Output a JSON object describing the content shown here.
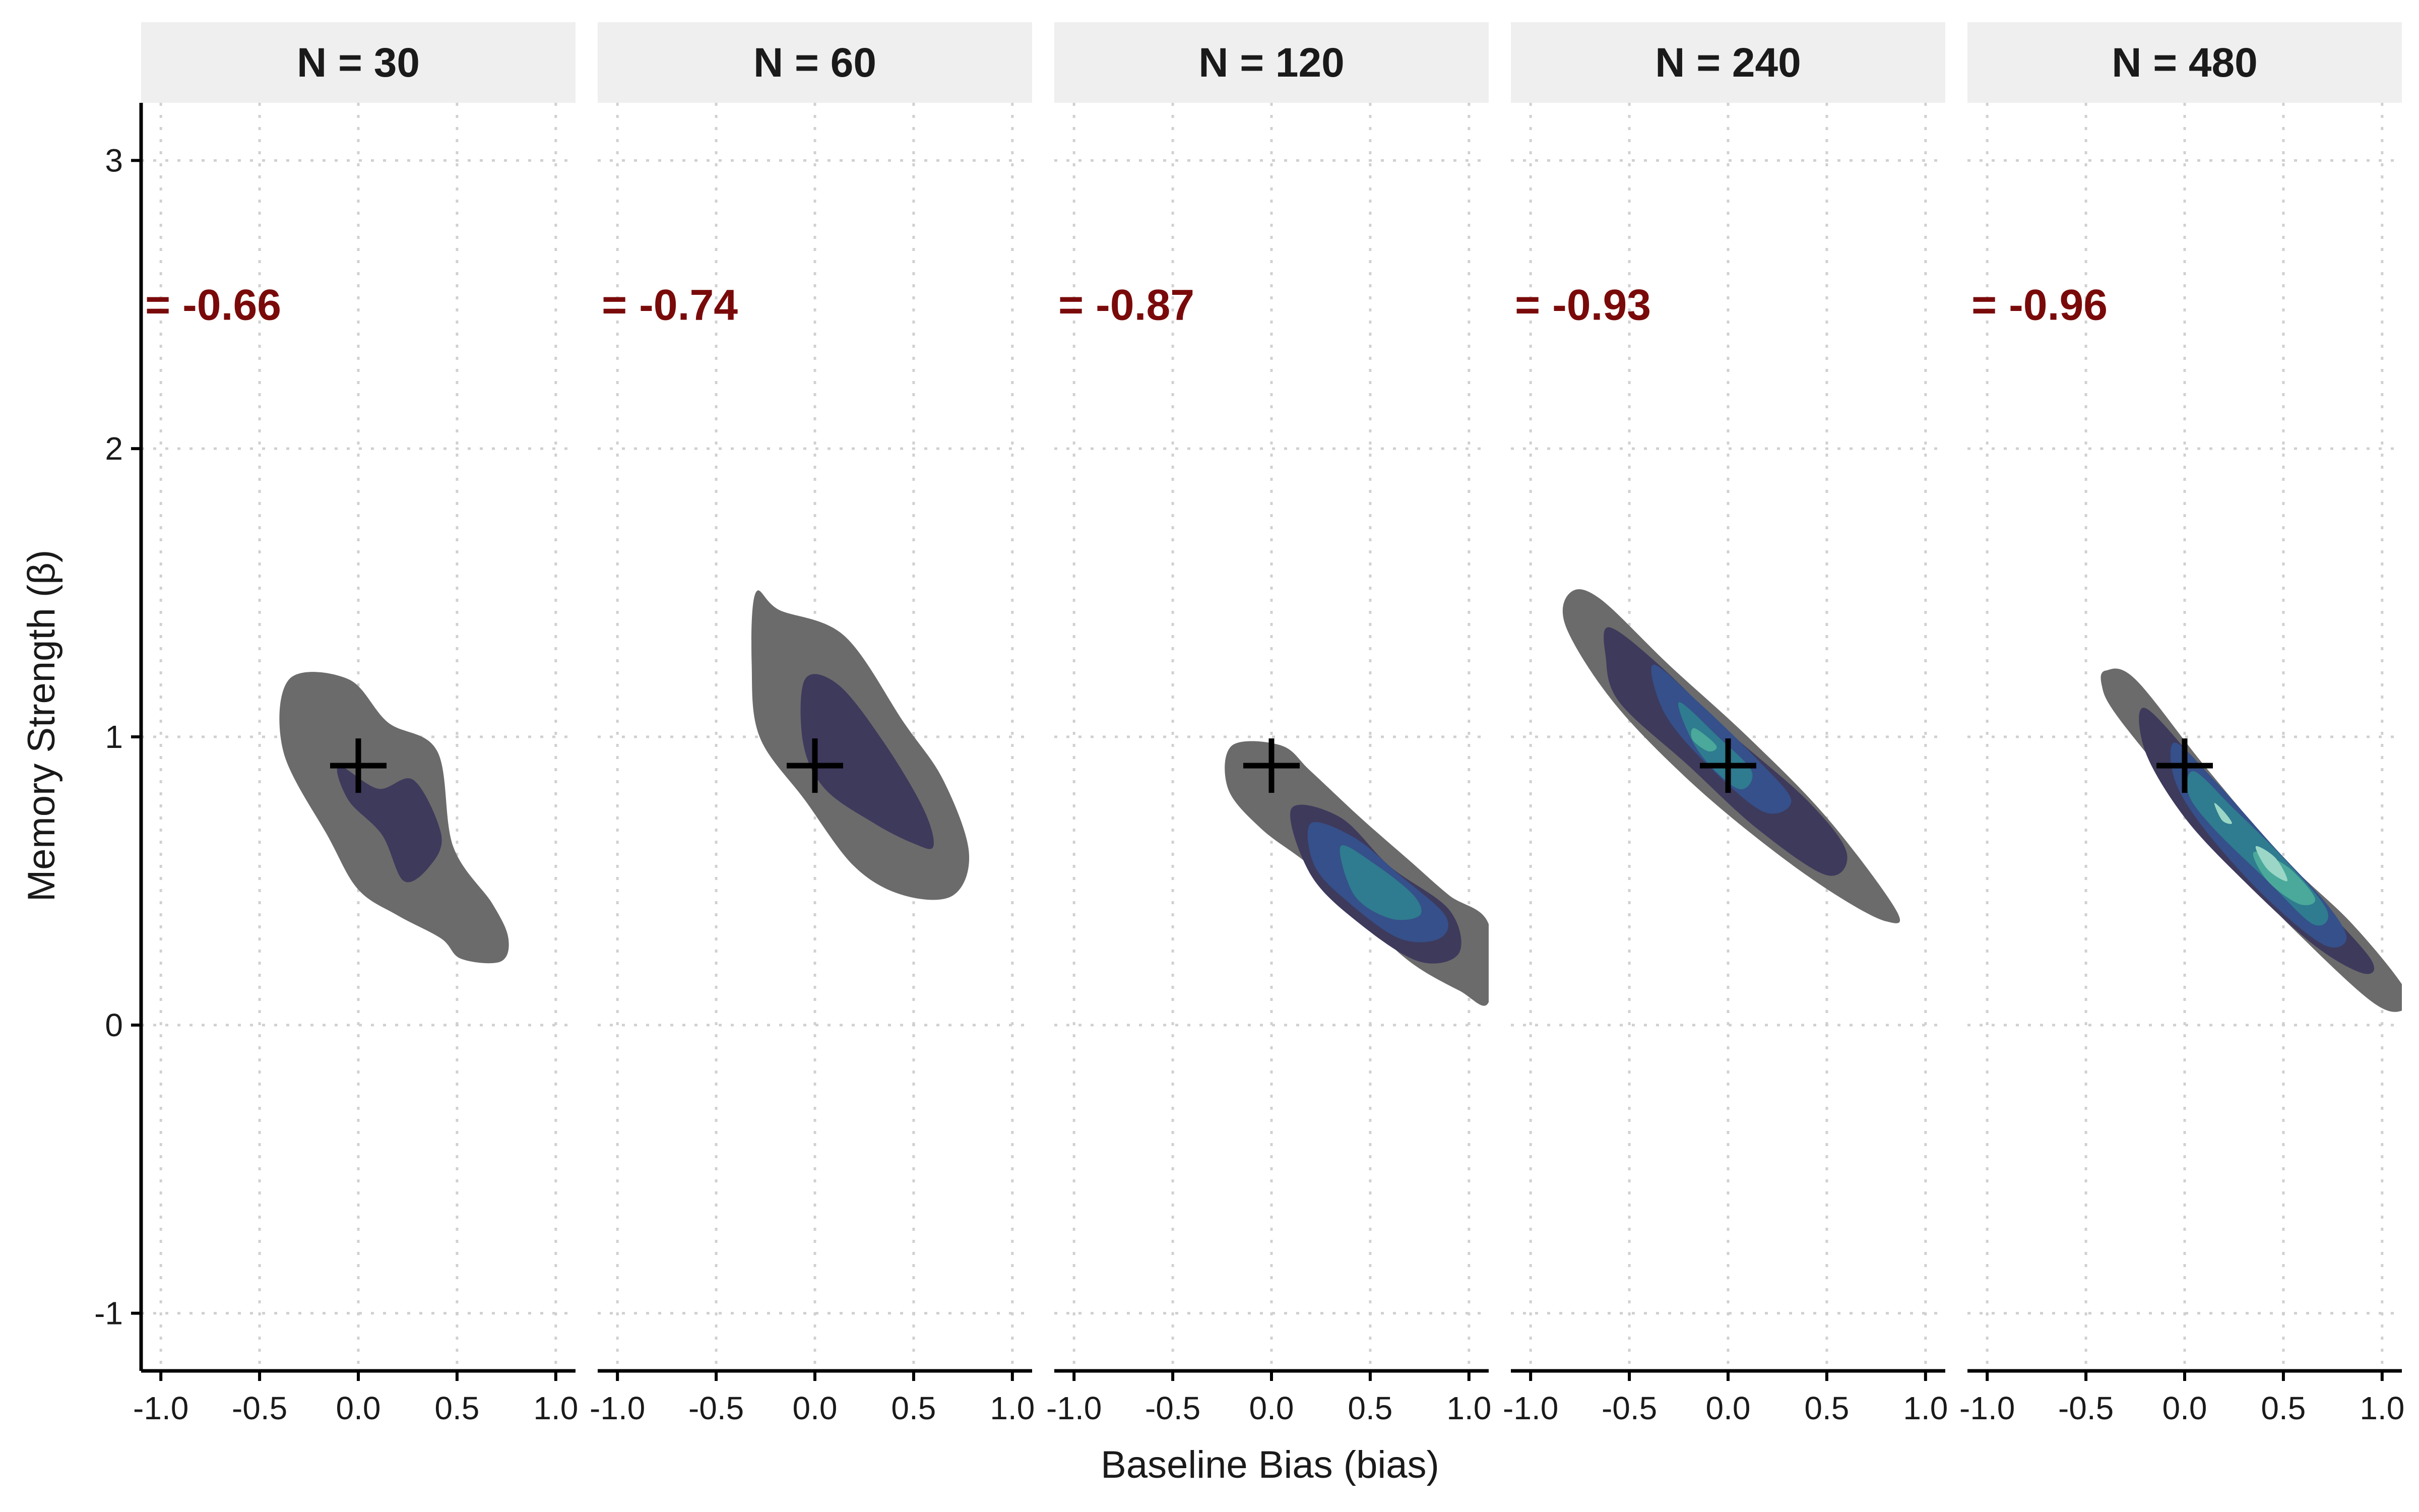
{
  "chart_data": {
    "type": "density_contour",
    "xlabel": "Baseline Bias (bias)",
    "ylabel": "Memory Strength (β)",
    "xlim": [
      -1.1,
      1.1
    ],
    "ylim": [
      -1.2,
      3.2
    ],
    "x_ticks": [
      "-1.0",
      "-0.5",
      "0.0",
      "0.5",
      "1.0"
    ],
    "y_ticks": [
      "-1",
      "0",
      "1",
      "2",
      "3"
    ],
    "x_tick_values": [
      -1.0,
      -0.5,
      0.0,
      0.5,
      1.0
    ],
    "y_tick_values": [
      -1,
      0,
      1,
      2,
      3
    ],
    "grid": true,
    "true_value": {
      "bias": 0.0,
      "beta": 0.9
    },
    "level_colors": [
      "#6b6b6b",
      "#3e3a5c",
      "#35508a",
      "#2f7b8f",
      "#4aa99a",
      "#9bd6c6"
    ],
    "panels": [
      {
        "strip": "N = 30",
        "correlation": "= -0.66",
        "levels": [
          {
            "level": 1,
            "points": [
              [
                -0.35,
                1.2
              ],
              [
                -0.05,
                1.2
              ],
              [
                0.15,
                1.05
              ],
              [
                0.4,
                0.95
              ],
              [
                0.48,
                0.62
              ],
              [
                0.68,
                0.42
              ],
              [
                0.76,
                0.3
              ],
              [
                0.72,
                0.22
              ],
              [
                0.52,
                0.23
              ],
              [
                0.42,
                0.3
              ],
              [
                0.2,
                0.38
              ],
              [
                0.0,
                0.47
              ],
              [
                -0.15,
                0.65
              ],
              [
                -0.38,
                0.95
              ]
            ]
          },
          {
            "level": 2,
            "points": [
              [
                -0.1,
                0.9
              ],
              [
                0.1,
                0.82
              ],
              [
                0.28,
                0.85
              ],
              [
                0.42,
                0.66
              ],
              [
                0.36,
                0.55
              ],
              [
                0.23,
                0.5
              ],
              [
                0.12,
                0.66
              ],
              [
                -0.05,
                0.78
              ]
            ]
          }
        ]
      },
      {
        "strip": "N = 60",
        "correlation": "= -0.74",
        "levels": [
          {
            "level": 1,
            "points": [
              [
                -0.3,
                1.5
              ],
              [
                -0.18,
                1.44
              ],
              [
                0.15,
                1.35
              ],
              [
                0.45,
                1.05
              ],
              [
                0.65,
                0.85
              ],
              [
                0.78,
                0.6
              ],
              [
                0.7,
                0.45
              ],
              [
                0.45,
                0.45
              ],
              [
                0.2,
                0.55
              ],
              [
                -0.05,
                0.78
              ],
              [
                -0.28,
                1.0
              ],
              [
                -0.32,
                1.25
              ]
            ]
          },
          {
            "level": 2,
            "points": [
              [
                -0.05,
                1.2
              ],
              [
                0.12,
                1.18
              ],
              [
                0.35,
                0.98
              ],
              [
                0.55,
                0.75
              ],
              [
                0.6,
                0.62
              ],
              [
                0.5,
                0.63
              ],
              [
                0.3,
                0.7
              ],
              [
                0.05,
                0.82
              ],
              [
                -0.06,
                0.98
              ]
            ]
          }
        ]
      },
      {
        "strip": "N = 120",
        "correlation": "= -0.87",
        "levels": [
          {
            "level": 1,
            "points": [
              [
                -0.2,
                0.97
              ],
              [
                0.05,
                0.97
              ],
              [
                0.2,
                0.88
              ],
              [
                0.45,
                0.72
              ],
              [
                0.7,
                0.57
              ],
              [
                0.9,
                0.45
              ],
              [
                1.1,
                0.35
              ],
              [
                1.1,
                0.08
              ],
              [
                0.95,
                0.12
              ],
              [
                0.7,
                0.22
              ],
              [
                0.45,
                0.38
              ],
              [
                0.2,
                0.55
              ],
              [
                -0.05,
                0.68
              ],
              [
                -0.22,
                0.82
              ]
            ]
          },
          {
            "level": 2,
            "points": [
              [
                0.1,
                0.75
              ],
              [
                0.35,
                0.72
              ],
              [
                0.6,
                0.55
              ],
              [
                0.9,
                0.4
              ],
              [
                0.95,
                0.25
              ],
              [
                0.75,
                0.22
              ],
              [
                0.45,
                0.35
              ],
              [
                0.2,
                0.52
              ]
            ]
          },
          {
            "level": 3,
            "points": [
              [
                0.2,
                0.7
              ],
              [
                0.42,
                0.65
              ],
              [
                0.65,
                0.52
              ],
              [
                0.88,
                0.38
              ],
              [
                0.85,
                0.3
              ],
              [
                0.65,
                0.3
              ],
              [
                0.4,
                0.42
              ],
              [
                0.22,
                0.55
              ]
            ]
          },
          {
            "level": 4,
            "points": [
              [
                0.35,
                0.62
              ],
              [
                0.52,
                0.56
              ],
              [
                0.72,
                0.45
              ],
              [
                0.75,
                0.38
              ],
              [
                0.6,
                0.37
              ],
              [
                0.42,
                0.45
              ]
            ]
          }
        ]
      },
      {
        "strip": "N = 240",
        "correlation": "= -0.93",
        "levels": [
          {
            "level": 1,
            "points": [
              [
                -0.8,
                1.5
              ],
              [
                -0.65,
                1.48
              ],
              [
                -0.3,
                1.25
              ],
              [
                0.1,
                1.0
              ],
              [
                0.5,
                0.72
              ],
              [
                0.85,
                0.4
              ],
              [
                0.8,
                0.36
              ],
              [
                0.55,
                0.45
              ],
              [
                0.2,
                0.62
              ],
              [
                -0.2,
                0.85
              ],
              [
                -0.58,
                1.12
              ],
              [
                -0.82,
                1.38
              ]
            ]
          },
          {
            "level": 2,
            "points": [
              [
                -0.6,
                1.38
              ],
              [
                -0.35,
                1.25
              ],
              [
                0.0,
                1.02
              ],
              [
                0.4,
                0.78
              ],
              [
                0.6,
                0.6
              ],
              [
                0.5,
                0.52
              ],
              [
                0.15,
                0.68
              ],
              [
                -0.2,
                0.9
              ],
              [
                -0.55,
                1.12
              ],
              [
                -0.62,
                1.28
              ]
            ]
          },
          {
            "level": 3,
            "points": [
              [
                -0.38,
                1.25
              ],
              [
                -0.15,
                1.12
              ],
              [
                0.15,
                0.92
              ],
              [
                0.32,
                0.78
              ],
              [
                0.18,
                0.74
              ],
              [
                -0.1,
                0.9
              ],
              [
                -0.32,
                1.08
              ]
            ]
          },
          {
            "level": 4,
            "points": [
              [
                -0.25,
                1.12
              ],
              [
                -0.05,
                1.0
              ],
              [
                0.12,
                0.88
              ],
              [
                0.05,
                0.82
              ],
              [
                -0.15,
                0.95
              ]
            ]
          },
          {
            "level": 5,
            "points": [
              [
                -0.17,
                1.03
              ],
              [
                -0.06,
                0.97
              ],
              [
                -0.1,
                0.95
              ],
              [
                -0.18,
                0.99
              ]
            ]
          }
        ]
      },
      {
        "strip": "N = 480",
        "correlation": "= -0.96",
        "levels": [
          {
            "level": 1,
            "points": [
              [
                -0.4,
                1.23
              ],
              [
                -0.25,
                1.2
              ],
              [
                0.1,
                0.9
              ],
              [
                0.5,
                0.58
              ],
              [
                0.85,
                0.35
              ],
              [
                1.12,
                0.12
              ],
              [
                1.1,
                0.05
              ],
              [
                0.95,
                0.08
              ],
              [
                0.6,
                0.3
              ],
              [
                0.25,
                0.55
              ],
              [
                -0.05,
                0.82
              ],
              [
                -0.35,
                1.08
              ],
              [
                -0.42,
                1.18
              ]
            ]
          },
          {
            "level": 2,
            "points": [
              [
                -0.2,
                1.1
              ],
              [
                0.1,
                0.88
              ],
              [
                0.45,
                0.6
              ],
              [
                0.75,
                0.38
              ],
              [
                0.95,
                0.22
              ],
              [
                0.9,
                0.18
              ],
              [
                0.65,
                0.28
              ],
              [
                0.3,
                0.5
              ],
              [
                0.0,
                0.72
              ],
              [
                -0.2,
                0.95
              ]
            ]
          },
          {
            "level": 3,
            "points": [
              [
                -0.05,
                0.98
              ],
              [
                0.15,
                0.85
              ],
              [
                0.45,
                0.62
              ],
              [
                0.72,
                0.42
              ],
              [
                0.82,
                0.3
              ],
              [
                0.7,
                0.28
              ],
              [
                0.4,
                0.45
              ],
              [
                0.1,
                0.68
              ],
              [
                -0.05,
                0.85
              ]
            ]
          },
          {
            "level": 4,
            "points": [
              [
                0.05,
                0.88
              ],
              [
                0.25,
                0.75
              ],
              [
                0.5,
                0.58
              ],
              [
                0.72,
                0.4
              ],
              [
                0.65,
                0.35
              ],
              [
                0.42,
                0.5
              ],
              [
                0.15,
                0.68
              ],
              [
                0.02,
                0.8
              ]
            ]
          },
          {
            "level": 5,
            "points": [
              [
                0.35,
                0.6
              ],
              [
                0.52,
                0.55
              ],
              [
                0.66,
                0.44
              ],
              [
                0.58,
                0.42
              ],
              [
                0.42,
                0.5
              ]
            ]
          },
          {
            "level": 6,
            "points": [
              [
                0.15,
                0.77
              ],
              [
                0.2,
                0.74
              ],
              [
                0.24,
                0.7
              ],
              [
                0.19,
                0.71
              ]
            ]
          },
          {
            "level": 6,
            "points": [
              [
                0.36,
                0.62
              ],
              [
                0.46,
                0.58
              ],
              [
                0.52,
                0.5
              ],
              [
                0.42,
                0.54
              ]
            ]
          }
        ]
      }
    ]
  }
}
